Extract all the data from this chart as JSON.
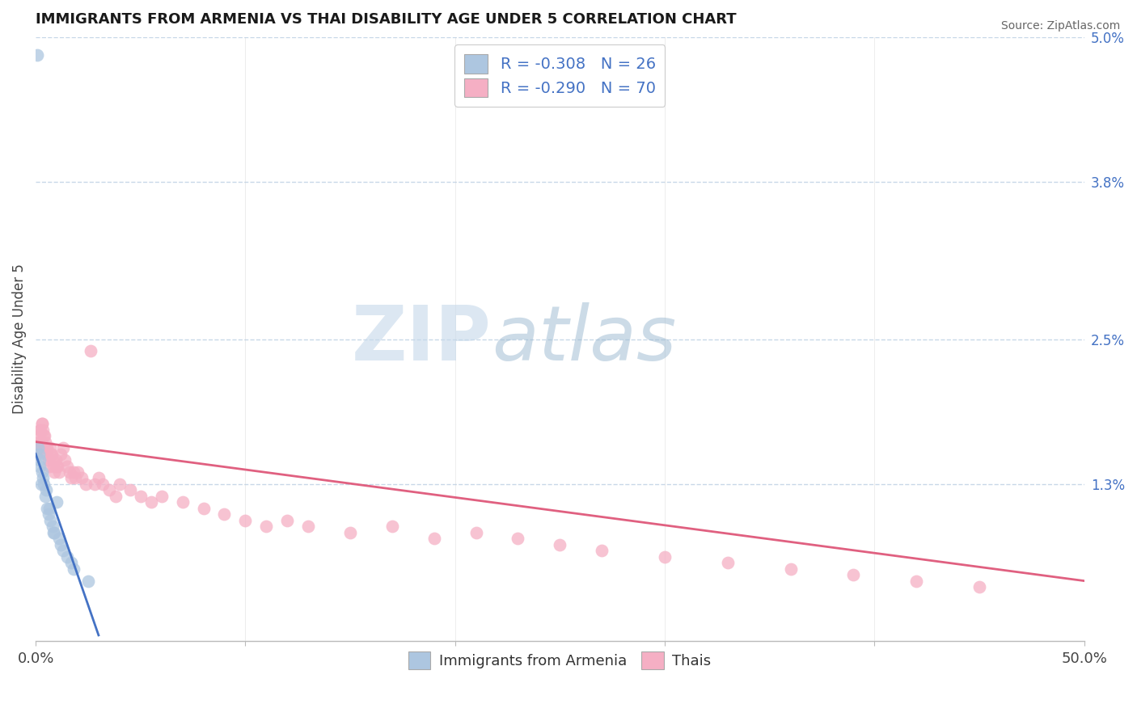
{
  "title": "IMMIGRANTS FROM ARMENIA VS THAI DISABILITY AGE UNDER 5 CORRELATION CHART",
  "source": "Source: ZipAtlas.com",
  "ylabel": "Disability Age Under 5",
  "legend_armenia": "R = -0.308   N = 26",
  "legend_thais": "R = -0.290   N = 70",
  "legend_label_armenia": "Immigrants from Armenia",
  "legend_label_thais": "Thais",
  "armenia_color": "#adc6e0",
  "thais_color": "#f5afc4",
  "armenia_line_color": "#4472c4",
  "thais_line_color": "#e06080",
  "legend_text_color": "#4472c4",
  "title_color": "#1a1a1a",
  "background_color": "#ffffff",
  "grid_color": "#c8d8e8",
  "armenia_scatter_x": [
    0.08,
    0.15,
    0.2,
    0.3,
    0.35,
    0.4,
    0.5,
    0.55,
    0.6,
    0.7,
    0.8,
    0.9,
    1.0,
    1.1,
    1.2,
    1.3,
    1.5,
    1.8,
    2.5,
    0.12,
    0.18,
    0.25,
    0.45,
    0.65,
    0.85,
    1.7
  ],
  "armenia_scatter_y": [
    4.85,
    1.55,
    1.45,
    1.4,
    1.35,
    1.3,
    1.25,
    1.1,
    1.05,
    1.0,
    0.95,
    0.9,
    1.15,
    0.85,
    0.8,
    0.75,
    0.7,
    0.6,
    0.5,
    1.6,
    1.5,
    1.3,
    1.2,
    1.1,
    0.9,
    0.65
  ],
  "thais_scatter_x": [
    0.05,
    0.1,
    0.15,
    0.2,
    0.25,
    0.3,
    0.35,
    0.4,
    0.45,
    0.5,
    0.55,
    0.6,
    0.65,
    0.7,
    0.75,
    0.8,
    0.85,
    0.9,
    0.95,
    1.0,
    1.1,
    1.2,
    1.3,
    1.4,
    1.5,
    1.6,
    1.7,
    1.8,
    1.9,
    2.0,
    2.2,
    2.4,
    2.6,
    2.8,
    3.0,
    3.2,
    3.5,
    3.8,
    4.0,
    4.5,
    5.0,
    5.5,
    6.0,
    7.0,
    8.0,
    9.0,
    10.0,
    11.0,
    12.0,
    13.0,
    15.0,
    17.0,
    19.0,
    21.0,
    23.0,
    25.0,
    27.0,
    30.0,
    33.0,
    36.0,
    39.0,
    42.0,
    45.0,
    0.12,
    0.22,
    0.32,
    0.42,
    0.52,
    0.72,
    1.05
  ],
  "thais_scatter_y": [
    1.55,
    1.6,
    1.7,
    1.75,
    1.65,
    1.8,
    1.75,
    1.7,
    1.65,
    1.6,
    1.55,
    1.5,
    1.45,
    1.6,
    1.55,
    1.5,
    1.45,
    1.4,
    1.5,
    1.45,
    1.4,
    1.55,
    1.6,
    1.5,
    1.45,
    1.4,
    1.35,
    1.4,
    1.35,
    1.4,
    1.35,
    1.3,
    2.4,
    1.3,
    1.35,
    1.3,
    1.25,
    1.2,
    1.3,
    1.25,
    1.2,
    1.15,
    1.2,
    1.15,
    1.1,
    1.05,
    1.0,
    0.95,
    1.0,
    0.95,
    0.9,
    0.95,
    0.85,
    0.9,
    0.85,
    0.8,
    0.75,
    0.7,
    0.65,
    0.6,
    0.55,
    0.5,
    0.45,
    1.65,
    1.75,
    1.8,
    1.7,
    1.6,
    1.55,
    1.45
  ],
  "xmin": 0.0,
  "xmax": 50.0,
  "ymin": 0.0,
  "ymax": 5.0,
  "right_yticks": [
    0.0,
    1.3,
    2.5,
    3.8,
    5.0
  ],
  "right_ytick_labels": [
    "",
    "1.3%",
    "2.5%",
    "3.8%",
    "5.0%"
  ],
  "armenia_trend_x0": 0.0,
  "armenia_trend_x1": 3.0,
  "armenia_trend_y0": 1.55,
  "armenia_trend_y1": 0.05,
  "thais_trend_x0": 0.0,
  "thais_trend_x1": 50.0,
  "thais_trend_y0": 1.65,
  "thais_trend_y1": 0.5,
  "watermark_zip": "ZIP",
  "watermark_atlas": "atlas",
  "scatter_size": 130
}
